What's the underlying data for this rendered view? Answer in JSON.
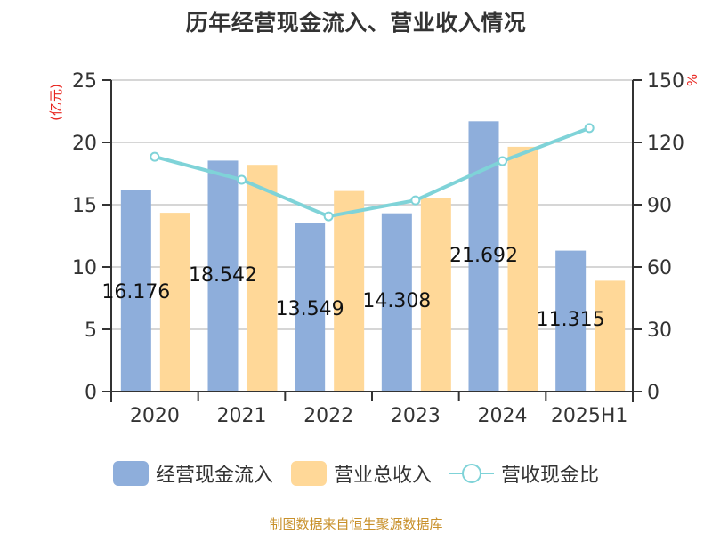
{
  "title": "历年经营现金流入、营业收入情况",
  "left_axis_unit": "(亿元)",
  "right_axis_unit": "%",
  "legend": [
    {
      "label": "经营现金流入",
      "color": "#8eaedb",
      "type": "bar"
    },
    {
      "label": "营业总收入",
      "color": "#ffd898",
      "type": "bar"
    },
    {
      "label": "营收现金比",
      "color": "#7fd3d8",
      "type": "line"
    }
  ],
  "source": "制图数据来自恒生聚源数据库",
  "chart_data": {
    "type": "bar",
    "title": "历年经营现金流入、营业收入情况",
    "categories": [
      "2020",
      "2021",
      "2022",
      "2023",
      "2024",
      "2025H1"
    ],
    "series": [
      {
        "name": "经营现金流入",
        "type": "bar",
        "axis": "left",
        "color": "#8eaedb",
        "values": [
          16.176,
          18.542,
          13.549,
          14.308,
          21.692,
          11.315
        ],
        "data_labels": [
          "16.176",
          "18.542",
          "13.549",
          "14.308",
          "21.692",
          "11.315"
        ]
      },
      {
        "name": "营业总收入",
        "type": "bar",
        "axis": "left",
        "color": "#ffd898",
        "values": [
          14.35,
          18.2,
          16.1,
          15.55,
          19.65,
          8.9
        ]
      },
      {
        "name": "营收现金比",
        "type": "line",
        "axis": "right",
        "color": "#7fd3d8",
        "values": [
          113.1,
          102.0,
          84.4,
          92.1,
          111.0,
          126.9
        ]
      }
    ],
    "xlabel": "",
    "ylabel": "(亿元)",
    "ylabel_right": "%",
    "ylim": [
      0,
      25
    ],
    "ylim_right": [
      0,
      150
    ],
    "yticks": [
      0,
      5,
      10,
      15,
      20,
      25
    ],
    "yticks_right": [
      0,
      30,
      60,
      90,
      120,
      150
    ],
    "grid": true,
    "legend_position": "bottom"
  }
}
